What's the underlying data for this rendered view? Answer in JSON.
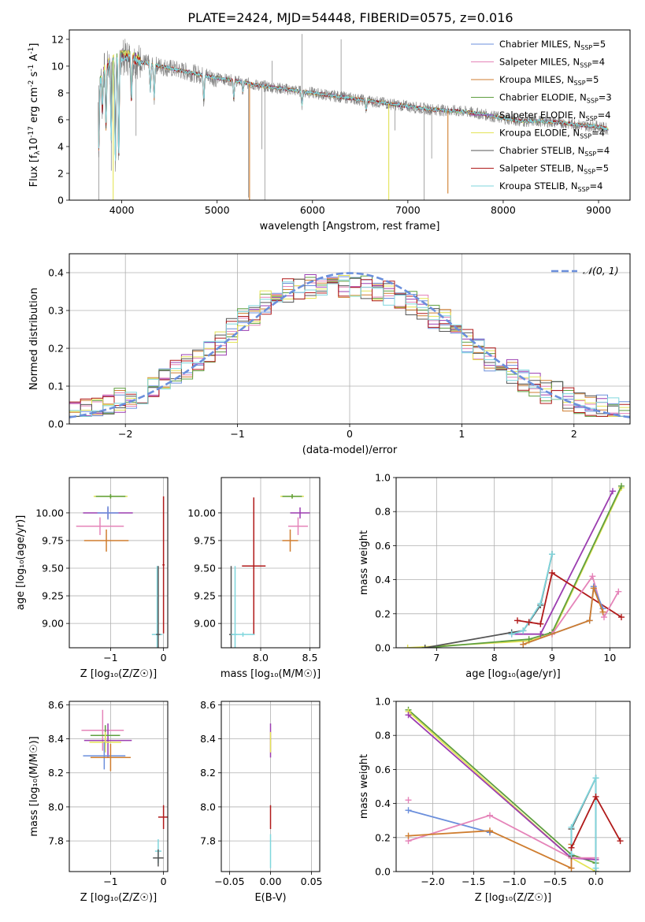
{
  "title": "PLATE=2424, MJD=54448, FIBERID=0575, z=0.016",
  "colors": {
    "chabrier_miles": "#6b8fdc",
    "salpeter_miles": "#e584b9",
    "kroupa_miles": "#cf7d2f",
    "chabrier_elodie": "#5f9f3f",
    "salpeter_elodie": "#9b3db0",
    "kroupa_elodie": "#e4e456",
    "chabrier_stelib": "#555555",
    "salpeter_stelib": "#b01a1a",
    "kroupa_stelib": "#7fd6dd",
    "data_spectrum": "#808080",
    "gaussian": "#6b8fdc"
  },
  "legend_entries": [
    {
      "main": "Chabrier MILES, N",
      "sub": "SSP",
      "tail": "=5",
      "color_key": "chabrier_miles"
    },
    {
      "main": "Salpeter MILES, N",
      "sub": "SSP",
      "tail": "=4",
      "color_key": "salpeter_miles"
    },
    {
      "main": "Kroupa MILES, N",
      "sub": "SSP",
      "tail": "=5",
      "color_key": "kroupa_miles"
    },
    {
      "main": "Chabrier ELODIE, N",
      "sub": "SSP",
      "tail": "=3",
      "color_key": "chabrier_elodie"
    },
    {
      "main": "Salpeter ELODIE, N",
      "sub": "SSP",
      "tail": "=4",
      "color_key": "salpeter_elodie"
    },
    {
      "main": "Kroupa ELODIE, N",
      "sub": "SSP",
      "tail": "=4",
      "color_key": "kroupa_elodie"
    },
    {
      "main": "Chabrier STELIB, N",
      "sub": "SSP",
      "tail": "=4",
      "color_key": "chabrier_stelib"
    },
    {
      "main": "Salpeter STELIB, N",
      "sub": "SSP",
      "tail": "=5",
      "color_key": "salpeter_stelib"
    },
    {
      "main": "Kroupa STELIB, N",
      "sub": "SSP",
      "tail": "=4",
      "color_key": "kroupa_stelib"
    }
  ],
  "chart_data": [
    {
      "id": "spectrum",
      "type": "line",
      "title": "PLATE=2424, MJD=54448, FIBERID=0575, z=0.016",
      "xlabel": "wavelength [Angstrom, rest frame]",
      "ylabel_parts": [
        "Flux [f",
        "λ",
        "10",
        "-17",
        " erg cm",
        "-2",
        " s",
        "-1",
        " A",
        "-1",
        "]"
      ],
      "xlim": [
        3450,
        9330
      ],
      "ylim": [
        0,
        12.7
      ],
      "xticks": [
        4000,
        5000,
        6000,
        7000,
        8000,
        9000
      ],
      "yticks": [
        0,
        2,
        4,
        6,
        8,
        10,
        12
      ],
      "continuum": {
        "x": [
          3750,
          3800,
          3900,
          4000,
          4100,
          4200,
          4400,
          4600,
          4800,
          5000,
          5200,
          5400,
          5600,
          5800,
          6000,
          6200,
          6400,
          6600,
          6800,
          7000,
          7200,
          7400,
          7600,
          7800,
          8000,
          8200,
          8400,
          8600,
          8800,
          9000,
          9100
        ],
        "y": [
          8.3,
          9.6,
          10.4,
          10.7,
          10.6,
          10.3,
          10.0,
          9.7,
          9.4,
          9.1,
          8.9,
          8.6,
          8.4,
          8.2,
          8.0,
          7.8,
          7.6,
          7.4,
          7.2,
          7.0,
          6.8,
          6.7,
          6.6,
          6.4,
          6.1,
          5.9,
          5.9,
          5.8,
          5.6,
          5.5,
          5.3
        ]
      },
      "absorption_lines": [
        {
          "x": 3760,
          "depth": 0.55
        },
        {
          "x": 3797,
          "depth": 0.3
        },
        {
          "x": 3835,
          "depth": 0.45
        },
        {
          "x": 3889,
          "depth": 0.55
        },
        {
          "x": 3933,
          "depth": 0.75
        },
        {
          "x": 3968,
          "depth": 0.7
        },
        {
          "x": 4102,
          "depth": 0.3
        },
        {
          "x": 4300,
          "depth": 0.2
        },
        {
          "x": 4340,
          "depth": 0.25
        },
        {
          "x": 4861,
          "depth": 0.2
        },
        {
          "x": 5175,
          "depth": 0.15
        },
        {
          "x": 5270,
          "depth": 0.08
        },
        {
          "x": 5890,
          "depth": 0.12
        },
        {
          "x": 6563,
          "depth": 0.1
        }
      ],
      "data_spikes": [
        {
          "x": 3760,
          "y": 0.0
        },
        {
          "x": 3890,
          "y": 2.2
        },
        {
          "x": 4150,
          "y": 4.8
        },
        {
          "x": 5330,
          "y": 0.2
        },
        {
          "x": 5470,
          "y": 3.8
        },
        {
          "x": 5500,
          "y": 0.0
        },
        {
          "x": 5577,
          "y": 10.4
        },
        {
          "x": 5890,
          "y": 12.4
        },
        {
          "x": 6300,
          "y": 12.0
        },
        {
          "x": 6800,
          "y": 2.1
        },
        {
          "x": 6865,
          "y": 5.2
        },
        {
          "x": 7170,
          "y": 0.0
        },
        {
          "x": 7250,
          "y": 3.1
        }
      ],
      "model_spikes": [
        {
          "x": 3910,
          "y": 0.0,
          "color_key": "kroupa_elodie"
        },
        {
          "x": 5340,
          "y": 0.0,
          "color_key": "kroupa_miles"
        },
        {
          "x": 6800,
          "y": 0.0,
          "color_key": "kroupa_elodie"
        },
        {
          "x": 7420,
          "y": 0.5,
          "color_key": "kroupa_miles"
        }
      ],
      "model_ends": {
        "kroupa_miles": 7420,
        "salpeter_miles": 7420,
        "chabrier_miles": 7420
      }
    },
    {
      "id": "residual_hist",
      "type": "histogram",
      "xlabel": "(data-model)/error",
      "ylabel": "Normed distribution",
      "xlim": [
        -2.5,
        2.5
      ],
      "ylim": [
        0,
        0.45
      ],
      "xticks": [
        -2,
        -1,
        0,
        1,
        2
      ],
      "yticks": [
        0.0,
        0.1,
        0.2,
        0.3,
        0.4
      ],
      "legend_label": "𝒩(0, 1)",
      "bin_width": 0.1,
      "bin_start": -2.5,
      "hist_envelope": [
        0.04,
        0.045,
        0.05,
        0.055,
        0.06,
        0.07,
        0.08,
        0.09,
        0.1,
        0.11,
        0.12,
        0.13,
        0.14,
        0.15,
        0.165,
        0.18,
        0.195,
        0.21,
        0.23,
        0.25,
        0.27,
        0.29,
        0.31,
        0.33,
        0.35,
        0.36,
        0.36,
        0.36,
        0.35,
        0.345,
        0.34,
        0.34,
        0.335,
        0.335,
        0.33,
        0.33,
        0.325,
        0.32,
        0.315,
        0.31,
        0.305,
        0.3,
        0.295,
        0.29,
        0.285,
        0.27,
        0.26,
        0.24,
        0.22,
        0.2,
        0.185,
        0.17,
        0.16,
        0.15,
        0.14,
        0.13,
        0.12,
        0.11,
        0.1,
        0.09,
        0.085,
        0.08,
        0.075,
        0.07,
        0.065,
        0.06,
        0.055,
        0.05,
        0.045,
        0.04
      ]
    },
    {
      "id": "age_vs_Z",
      "type": "errorbar",
      "xlabel": "Z [log₁₀(Z/Z☉)]",
      "ylabel": "age  [log₁₀(age/yr)]",
      "xlim": [
        -1.78,
        0.08
      ],
      "ylim": [
        8.78,
        10.32
      ],
      "xticks": [
        -1,
        0
      ],
      "yticks": [
        9.0,
        9.25,
        9.5,
        9.75,
        10.0
      ],
      "ytick_labels": [
        "9.00",
        "9.25",
        "9.50",
        "9.75",
        "10.00"
      ],
      "points": [
        {
          "x": -1.0,
          "y": 10.15,
          "xerr": 0.32,
          "yerr": 0.02,
          "color_key": "kroupa_elodie"
        },
        {
          "x": -1.0,
          "y": 10.15,
          "xerr": 0.28,
          "yerr": 0.02,
          "color_key": "chabrier_elodie"
        },
        {
          "x": -1.05,
          "y": 10.0,
          "xerr": 0.47,
          "yerr": 0.05,
          "color_key": "salpeter_elodie"
        },
        {
          "x": -1.05,
          "y": 10.0,
          "xerr": 0.2,
          "yerr": 0.06,
          "color_key": "chabrier_miles"
        },
        {
          "x": -1.2,
          "y": 9.88,
          "xerr": 0.45,
          "yerr": 0.08,
          "color_key": "salpeter_miles"
        },
        {
          "x": -1.08,
          "y": 9.75,
          "xerr": 0.42,
          "yerr": 0.1,
          "color_key": "kroupa_miles"
        },
        {
          "x": 0.0,
          "y": 9.53,
          "xerr": 0.02,
          "yerr": 0.62,
          "color_key": "salpeter_stelib"
        },
        {
          "x": -0.12,
          "y": 8.9,
          "xerr": 0.1,
          "yerr": 0.62,
          "color_key": "kroupa_stelib"
        },
        {
          "x": -0.1,
          "y": 8.9,
          "xerr": 0.04,
          "yerr": 0.62,
          "color_key": "chabrier_stelib"
        }
      ]
    },
    {
      "id": "age_vs_mass",
      "type": "errorbar",
      "xlabel": "mass [log₁₀(M/M☉)]",
      "xlim": [
        7.6,
        8.6
      ],
      "ylim": [
        8.78,
        10.32
      ],
      "xticks": [
        8.0,
        8.5
      ],
      "xtick_labels": [
        "8.0",
        "8.5"
      ],
      "yticks": [
        9.0,
        9.25,
        9.5,
        9.75,
        10.0
      ],
      "ytick_labels": [
        "9.00",
        "9.25",
        "9.50",
        "9.75",
        "10.00"
      ],
      "points": [
        {
          "x": 8.32,
          "y": 10.15,
          "xerr": 0.12,
          "yerr": 0.02,
          "color_key": "kroupa_elodie"
        },
        {
          "x": 8.32,
          "y": 10.15,
          "xerr": 0.1,
          "yerr": 0.02,
          "color_key": "chabrier_elodie"
        },
        {
          "x": 8.4,
          "y": 10.0,
          "xerr": 0.1,
          "yerr": 0.05,
          "color_key": "salpeter_elodie"
        },
        {
          "x": 8.38,
          "y": 9.88,
          "xerr": 0.1,
          "yerr": 0.08,
          "color_key": "salpeter_miles"
        },
        {
          "x": 8.3,
          "y": 9.75,
          "xerr": 0.08,
          "yerr": 0.1,
          "color_key": "kroupa_miles"
        },
        {
          "x": 7.93,
          "y": 9.52,
          "xerr": 0.12,
          "yerr": 0.62,
          "color_key": "salpeter_stelib"
        },
        {
          "x": 7.7,
          "y": 8.9,
          "xerr": 0.02,
          "yerr": 0.62,
          "color_key": "chabrier_stelib"
        },
        {
          "x": 7.74,
          "y": 8.9,
          "xerr": 0.02,
          "yerr": 0.62,
          "color_key": "kroupa_stelib"
        },
        {
          "x": 7.82,
          "y": 8.9,
          "xerr": 0.12,
          "yerr": 0.02,
          "color_key": "kroupa_stelib"
        }
      ]
    },
    {
      "id": "weight_vs_age",
      "type": "line",
      "xlabel": "age  [log₁₀(age/yr)]",
      "ylabel": "mass weight",
      "xlim": [
        6.3,
        10.35
      ],
      "ylim": [
        0,
        1.0
      ],
      "xticks": [
        7,
        8,
        9,
        10
      ],
      "yticks": [
        0.0,
        0.2,
        0.4,
        0.6,
        0.8,
        1.0
      ],
      "series": [
        {
          "color_key": "kroupa_elodie",
          "x": [
            6.5,
            8.6,
            9.0,
            10.2
          ],
          "y": [
            0.0,
            0.04,
            0.08,
            0.94
          ]
        },
        {
          "color_key": "chabrier_elodie",
          "x": [
            6.8,
            8.6,
            9.0,
            10.2
          ],
          "y": [
            0.0,
            0.05,
            0.09,
            0.95
          ]
        },
        {
          "color_key": "salpeter_elodie",
          "x": [
            8.3,
            8.8,
            10.05
          ],
          "y": [
            0.08,
            0.08,
            0.92
          ]
        },
        {
          "color_key": "chabrier_stelib",
          "x": [
            6.8,
            8.3,
            8.5,
            8.8,
            9.0
          ],
          "y": [
            0.0,
            0.09,
            0.1,
            0.25,
            0.55
          ]
        },
        {
          "color_key": "kroupa_stelib",
          "x": [
            8.3,
            8.5,
            8.8,
            9.0
          ],
          "y": [
            0.08,
            0.1,
            0.26,
            0.55
          ]
        },
        {
          "color_key": "salpeter_stelib",
          "x": [
            8.4,
            8.6,
            8.8,
            9.0,
            10.2
          ],
          "y": [
            0.16,
            0.15,
            0.14,
            0.44,
            0.18
          ]
        },
        {
          "color_key": "salpeter_miles",
          "x": [
            9.0,
            9.7,
            9.9,
            10.15
          ],
          "y": [
            0.08,
            0.42,
            0.18,
            0.33
          ]
        },
        {
          "color_key": "chabrier_miles",
          "x": [
            8.5,
            9.65,
            9.72,
            9.88
          ],
          "y": [
            0.02,
            0.16,
            0.36,
            0.23
          ]
        },
        {
          "color_key": "kroupa_miles",
          "x": [
            8.5,
            9.65,
            9.72,
            9.88
          ],
          "y": [
            0.02,
            0.16,
            0.35,
            0.21
          ]
        }
      ]
    },
    {
      "id": "mass_vs_Z",
      "type": "errorbar",
      "xlabel": "Z [log₁₀(Z/Z☉)]",
      "ylabel": "mass [log₁₀(M/M☉)]",
      "xlim": [
        -1.78,
        0.08
      ],
      "ylim": [
        7.62,
        8.62
      ],
      "xticks": [
        -1,
        0
      ],
      "yticks": [
        7.8,
        8.0,
        8.2,
        8.4,
        8.6
      ],
      "ytick_labels": [
        "7.8",
        "8.0",
        "8.2",
        "8.4",
        "8.6"
      ],
      "points": [
        {
          "x": -1.15,
          "y": 8.45,
          "xerr": 0.4,
          "yerr": 0.12,
          "color_key": "salpeter_miles"
        },
        {
          "x": -1.05,
          "y": 8.39,
          "xerr": 0.45,
          "yerr": 0.1,
          "color_key": "salpeter_elodie"
        },
        {
          "x": -1.1,
          "y": 8.42,
          "xerr": 0.28,
          "yerr": 0.06,
          "color_key": "chabrier_elodie"
        },
        {
          "x": -1.1,
          "y": 8.38,
          "xerr": 0.3,
          "yerr": 0.06,
          "color_key": "kroupa_elodie"
        },
        {
          "x": -1.12,
          "y": 8.3,
          "xerr": 0.4,
          "yerr": 0.08,
          "color_key": "chabrier_miles"
        },
        {
          "x": -1.0,
          "y": 8.29,
          "xerr": 0.38,
          "yerr": 0.08,
          "color_key": "kroupa_miles"
        },
        {
          "x": 0.0,
          "y": 7.94,
          "xerr": 0.1,
          "yerr": 0.07,
          "color_key": "salpeter_stelib"
        },
        {
          "x": -0.1,
          "y": 7.74,
          "xerr": 0.06,
          "yerr": 0.07,
          "color_key": "kroupa_stelib"
        },
        {
          "x": -0.1,
          "y": 7.7,
          "xerr": 0.1,
          "yerr": 0.05,
          "color_key": "chabrier_stelib"
        }
      ]
    },
    {
      "id": "mass_vs_ebv",
      "type": "errorbar",
      "xlabel": "E(B-V)",
      "xlim": [
        -0.06,
        0.06
      ],
      "ylim": [
        7.62,
        8.62
      ],
      "xticks": [
        -0.05,
        0.0,
        0.05
      ],
      "xtick_labels": [
        "−0.05",
        "0.00",
        "0.05"
      ],
      "yticks": [
        7.8,
        8.0,
        8.2,
        8.4,
        8.6
      ],
      "ytick_labels": [
        "7.8",
        "8.0",
        "8.2",
        "8.4",
        "8.6"
      ],
      "points": [
        {
          "x": 0.0,
          "y": 8.39,
          "xerr": 0.0,
          "yerr": 0.1,
          "color_key": "salpeter_elodie"
        },
        {
          "x": 0.0,
          "y": 8.38,
          "xerr": 0.0,
          "yerr": 0.06,
          "color_key": "kroupa_elodie"
        },
        {
          "x": 0.0,
          "y": 7.94,
          "xerr": 0.0,
          "yerr": 0.07,
          "color_key": "salpeter_stelib"
        },
        {
          "x": 0.0,
          "y": 7.74,
          "xerr": 0.0,
          "yerr": 0.1,
          "color_key": "kroupa_stelib"
        }
      ]
    },
    {
      "id": "weight_vs_Z",
      "type": "line",
      "xlabel": "Z [log₁₀(Z/Z☉)]",
      "ylabel": "mass weight",
      "xlim": [
        -2.45,
        0.42
      ],
      "ylim": [
        0,
        1.0
      ],
      "xticks": [
        -2.0,
        -1.5,
        -1.0,
        -0.5,
        0.0
      ],
      "xtick_labels": [
        "−2.0",
        "−1.5",
        "−1.0",
        "−0.5",
        "0.0"
      ],
      "yticks": [
        0.0,
        0.2,
        0.4,
        0.6,
        0.8,
        1.0
      ],
      "series": [
        {
          "color_key": "chabrier_elodie",
          "x": [
            -2.3,
            -0.3,
            0.0
          ],
          "y": [
            0.95,
            0.1,
            0.05
          ]
        },
        {
          "color_key": "kroupa_elodie",
          "x": [
            -2.3,
            -0.3,
            0.0
          ],
          "y": [
            0.94,
            0.08,
            0.0
          ]
        },
        {
          "color_key": "salpeter_elodie",
          "x": [
            -2.3,
            -0.3,
            0.0
          ],
          "y": [
            0.92,
            0.08,
            0.07
          ]
        },
        {
          "color_key": "chabrier_miles",
          "x": [
            -2.3,
            -1.3
          ],
          "y": [
            0.36,
            0.23
          ]
        },
        {
          "color_key": "salpeter_miles",
          "x": [
            -2.3,
            -1.3,
            -0.3,
            0.0
          ],
          "y": [
            0.18,
            0.33,
            0.08,
            0.08
          ]
        },
        {
          "color_key": "kroupa_miles",
          "x": [
            -2.3,
            -1.3,
            -0.3,
            -0.3
          ],
          "y": [
            0.21,
            0.24,
            0.02,
            0.16
          ]
        },
        {
          "color_key": "chabrier_stelib",
          "x": [
            -0.3,
            -0.3,
            0.0,
            0.0
          ],
          "y": [
            0.09,
            0.25,
            0.55,
            0.0
          ]
        },
        {
          "color_key": "kroupa_stelib",
          "x": [
            -0.3,
            -0.3,
            0.0,
            0.0
          ],
          "y": [
            0.1,
            0.26,
            0.55,
            0.02
          ]
        },
        {
          "color_key": "salpeter_stelib",
          "x": [
            -0.3,
            0.0,
            0.3
          ],
          "y": [
            0.14,
            0.44,
            0.18
          ]
        },
        {
          "color_key": "salpeter_miles",
          "x": [
            -2.3
          ],
          "y": [
            0.42
          ]
        }
      ]
    }
  ]
}
